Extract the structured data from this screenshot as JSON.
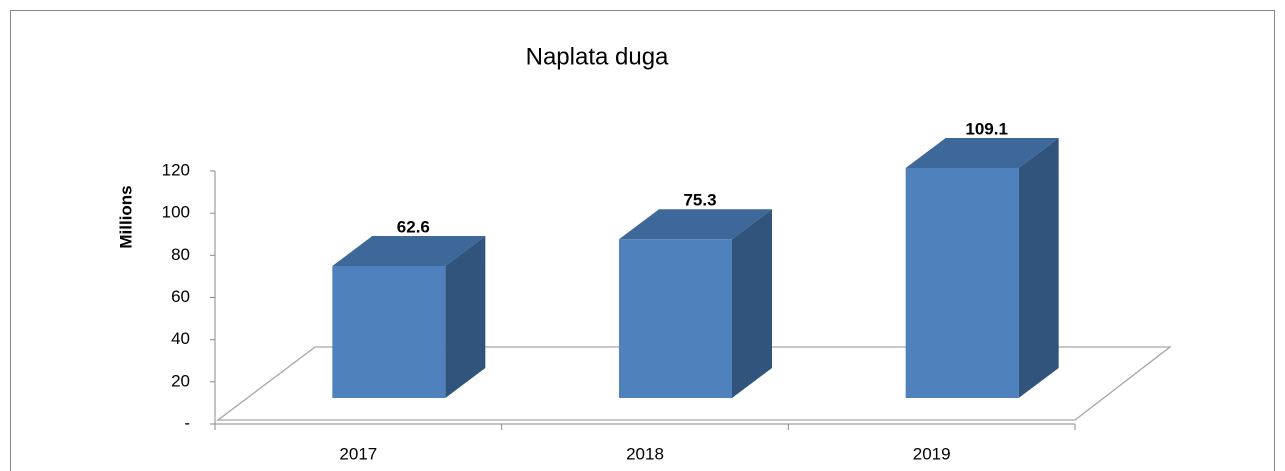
{
  "chart_data": {
    "type": "bar3d",
    "title": "Naplata duga",
    "y_label": "Millions",
    "categories": [
      "2017",
      "2018",
      "2019"
    ],
    "values": [
      62.6,
      75.3,
      109.1
    ],
    "color": "#4f81bd",
    "ylim": [
      0,
      120
    ],
    "yticks": [
      {
        "value": 0,
        "label": "-"
      },
      20,
      40,
      60,
      80,
      100,
      120
    ]
  }
}
